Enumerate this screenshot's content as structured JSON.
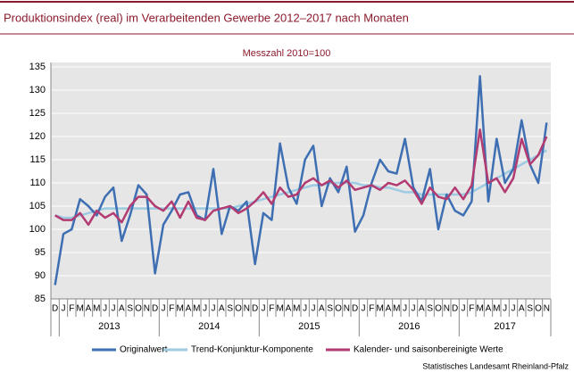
{
  "chart_data": {
    "type": "line",
    "title": "Produktionsindex (real) im Verarbeitenden Gewerbe 2012–2017 nach Monaten",
    "subtitle": "Messzahl 2010=100",
    "source": "Statistisches Landesamt Rheinland-Pfalz",
    "categories": [
      "D",
      "J",
      "F",
      "M",
      "A",
      "M",
      "J",
      "J",
      "A",
      "S",
      "O",
      "N",
      "D",
      "J",
      "F",
      "M",
      "A",
      "M",
      "J",
      "J",
      "A",
      "S",
      "O",
      "N",
      "D",
      "J",
      "F",
      "M",
      "A",
      "M",
      "J",
      "J",
      "A",
      "S",
      "O",
      "N",
      "D",
      "J",
      "F",
      "M",
      "A",
      "M",
      "J",
      "J",
      "A",
      "S",
      "O",
      "N",
      "D",
      "J",
      "F",
      "M",
      "A",
      "M",
      "J",
      "J",
      "A",
      "S",
      "O",
      "N"
    ],
    "years": [
      "2013",
      "2014",
      "2015",
      "2016",
      "2017"
    ],
    "ylim": [
      85,
      135
    ],
    "yticks": [
      85,
      90,
      95,
      100,
      105,
      110,
      115,
      120,
      125,
      130,
      135
    ],
    "grid": true,
    "series": [
      {
        "name": "Originalwert",
        "color": "#3d6fb2",
        "values": [
          88,
          99,
          100,
          106.5,
          105,
          103,
          107,
          109,
          97.5,
          103,
          109.5,
          107.5,
          90.5,
          101,
          104,
          107.5,
          108,
          103,
          102,
          113,
          99,
          105,
          104,
          106,
          92.5,
          103.5,
          102,
          118.5,
          109,
          105.5,
          115,
          118,
          105,
          111,
          108,
          113.5,
          99.5,
          103,
          110,
          115,
          112.5,
          112,
          119.5,
          109,
          106,
          113,
          100,
          107.5,
          104,
          103,
          106,
          133,
          106,
          119.5,
          110,
          113,
          123.5,
          114,
          110,
          123
        ]
      },
      {
        "name": "Trend-Konjunktur-Komponente",
        "color": "#9ccbe2",
        "values": [
          103,
          102.5,
          102.5,
          103,
          103.5,
          104,
          104.5,
          104.5,
          104.5,
          104.5,
          104.5,
          104.5,
          104.5,
          104.5,
          104.5,
          104.5,
          104.5,
          104.5,
          104.5,
          104.5,
          104.5,
          104.5,
          105,
          105.5,
          106,
          106.5,
          107,
          107.5,
          108,
          108.5,
          109,
          109.5,
          109.5,
          110,
          110,
          110,
          110,
          109.5,
          109.5,
          109,
          109,
          108.5,
          108,
          108,
          107.5,
          107.5,
          107.5,
          107.5,
          107.5,
          107.5,
          108,
          109,
          110,
          111,
          112,
          113,
          114,
          115,
          116,
          117
        ]
      },
      {
        "name": "Kalender- und saisonbereinigte Werte",
        "color": "#b23b72",
        "values": [
          103,
          102,
          102,
          103.5,
          101,
          104,
          102.5,
          103.5,
          101.5,
          105,
          107,
          107,
          105,
          104,
          106,
          102.5,
          106,
          102.5,
          102,
          104,
          104.5,
          105,
          103.5,
          104.5,
          106,
          108,
          105.5,
          109,
          107,
          107.5,
          110,
          111,
          109.5,
          110.5,
          109,
          110.5,
          108.5,
          109,
          109.5,
          108.5,
          110,
          109.5,
          110.5,
          108.5,
          105.5,
          109,
          107,
          106.5,
          109,
          106.5,
          109.5,
          121.5,
          110,
          111,
          108,
          111,
          119.5,
          114,
          116,
          120
        ]
      }
    ]
  }
}
